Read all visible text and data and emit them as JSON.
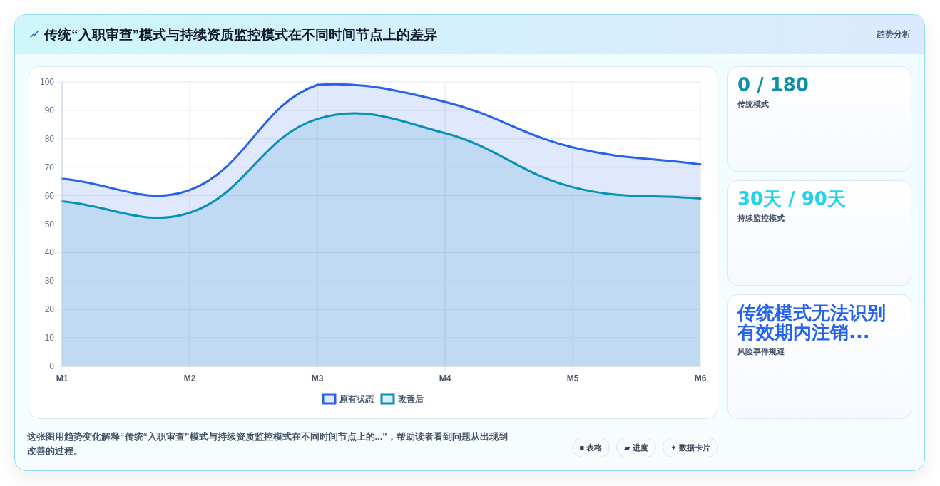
{
  "chart_data": [
    {
      "type": "area",
      "title": "传统“入职审查”模式与持续资质监控模式在不同时间节点上的差异",
      "categories": [
        "M1",
        "M2",
        "M3",
        "M4",
        "M5",
        "M6"
      ],
      "series": [
        {
          "name": "原有状态",
          "color": "#2563eb",
          "values": [
            66,
            62,
            99,
            93,
            77,
            71
          ]
        },
        {
          "name": "改善后",
          "color": "#0891b2",
          "values": [
            58,
            54,
            87,
            82,
            63,
            59
          ]
        }
      ],
      "ylim": [
        0,
        100
      ],
      "yticks": [
        0,
        10,
        20,
        30,
        40,
        50,
        60,
        70,
        80,
        90,
        100
      ],
      "grid": true,
      "legend": "bottom",
      "annotations": [
        "趋势分析",
        "这张图用趋势变化解释“传统“入职审查”模式与持续资质监控模式在不同时间节点上的...”，帮助读者看到问题从出现到改善的过程。",
        "■ 表格",
        "▰ 进度",
        "✦ 数据卡片"
      ]
    },
    {
      "type": "other",
      "title": "0 / 180",
      "subtitle": "传统模式"
    },
    {
      "type": "other",
      "title": "30天 / 90天",
      "subtitle": "持续监控模式"
    },
    {
      "type": "other",
      "title": "传统模式无法识别有效期内注销...",
      "subtitle": "风险事件规避"
    }
  ]
}
